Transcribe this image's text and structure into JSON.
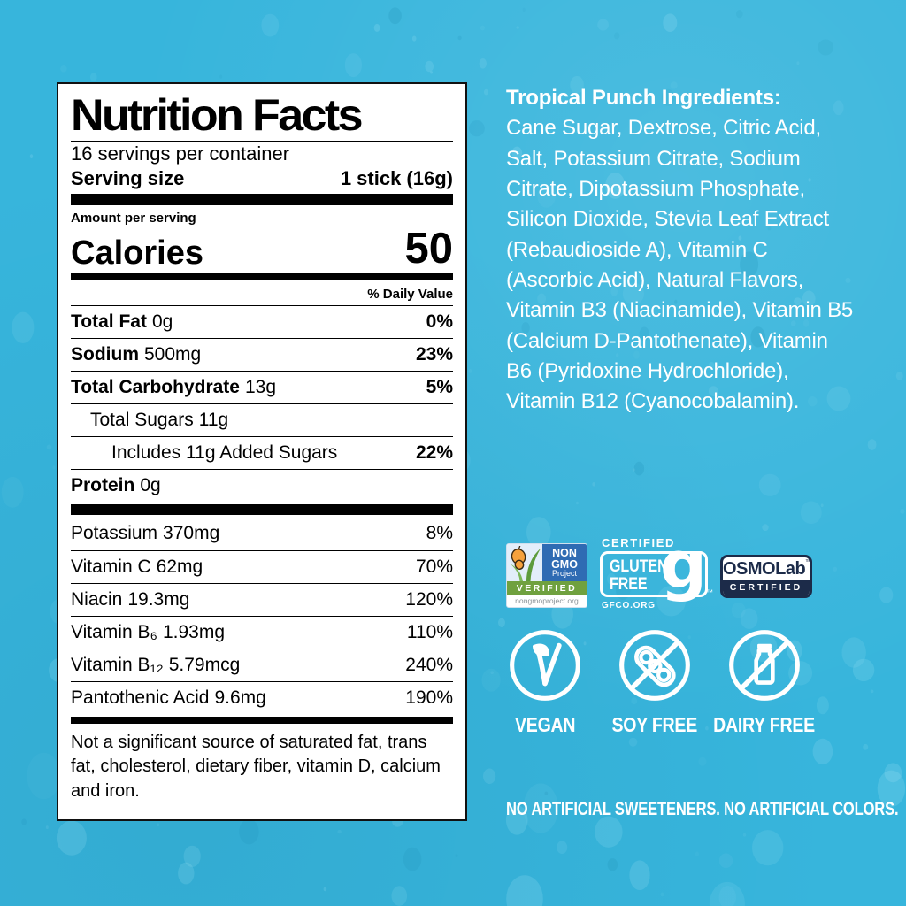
{
  "colors": {
    "background": "#37b5dc",
    "droplet_highlight": "#9fe2f4",
    "label_ink": "#000000",
    "text_white": "#ffffff",
    "non_gmo_blue": "#2f6bb3",
    "non_gmo_green": "#70a13f",
    "butterfly_orange": "#f6a13c",
    "osmo_navy": "#1c2b49"
  },
  "nutrition_label": {
    "title": "Nutrition Facts",
    "servings_per_container": "16 servings per container",
    "serving_size_label": "Serving size",
    "serving_size_value": "1 stick (16g)",
    "amount_per_serving": "Amount per serving",
    "calories_label": "Calories",
    "calories_value": "50",
    "daily_value_header": "% Daily Value",
    "rows": [
      {
        "name": "Total Fat",
        "amount": "0g",
        "dv": "0%"
      },
      {
        "name": "Sodium",
        "amount": "500mg",
        "dv": "23%"
      },
      {
        "name": "Total Carbohydrate",
        "amount": "13g",
        "dv": "5%"
      },
      {
        "name": "Total Sugars",
        "amount": "11g",
        "dv": ""
      },
      {
        "name": "Includes 11g Added Sugars",
        "amount": "",
        "dv": "22%"
      },
      {
        "name": "Protein",
        "amount": "0g",
        "dv": ""
      }
    ],
    "micronutrient_rows": [
      {
        "name": "Potassium",
        "amount": "370mg",
        "dv": "8%"
      },
      {
        "name": "Vitamin C",
        "amount": "62mg",
        "dv": "70%"
      },
      {
        "name": "Niacin",
        "amount": "19.3mg",
        "dv": "120%"
      },
      {
        "name": "Vitamin B₆",
        "amount": "1.93mg",
        "dv": "110%"
      },
      {
        "name": "Vitamin B₁₂",
        "amount": "5.79mcg",
        "dv": "240%"
      },
      {
        "name": "Pantothenic Acid",
        "amount": "9.6mg",
        "dv": "190%"
      }
    ],
    "footnote": "Not a significant source of saturated fat, trans fat, cholesterol, dietary fiber, vitamin D, calcium and iron."
  },
  "ingredients": {
    "heading": "Tropical Punch Ingredients:",
    "body": "Cane Sugar, Dextrose, Citric Acid, Salt, Potassium Citrate, Sodium Citrate, Dipotassium Phosphate, Silicon Dioxide, Stevia Leaf Extract (Rebaudioside A), Vitamin C (Ascorbic Acid), Natural Flavors, Vitamin B3 (Niacinamide), Vitamin B5 (Calcium D-Pantothenate), Vitamin B6 (Pyridoxine Hydrochloride), Vitamin B12 (Cyanocobalamin)."
  },
  "certifications": {
    "non_gmo": {
      "line1": "NON",
      "line2": "GMO",
      "line3": "Project",
      "verified": "VERIFIED",
      "url": "nongmoproject.org"
    },
    "gluten_free": {
      "certified": "CERTIFIED",
      "word1": "GLUTEN",
      "word2": "FREE",
      "glyph": "g",
      "tm": "™",
      "org": "GFCO.ORG"
    },
    "osmolab": {
      "brand_osmo": "OSMO",
      "brand_lab": "Lab",
      "tm": "™",
      "certified": "CERTIFIED"
    }
  },
  "diet_claims": [
    {
      "label": "VEGAN"
    },
    {
      "label": "SOY FREE"
    },
    {
      "label": "DAIRY FREE"
    }
  ],
  "tagline": "NO ARTIFICIAL SWEETENERS. NO ARTIFICIAL COLORS."
}
